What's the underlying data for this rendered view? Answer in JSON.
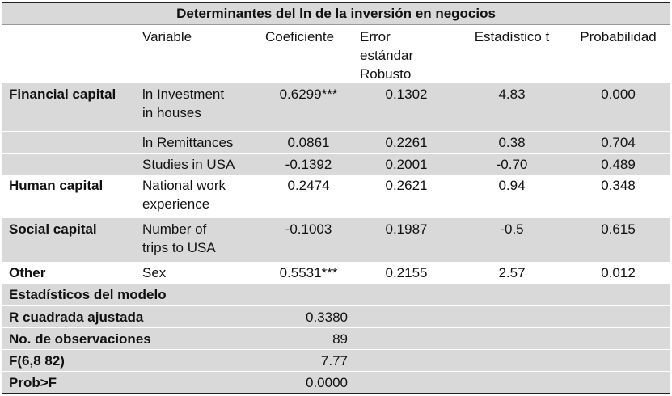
{
  "title": "Determinantes del ln de la inversión en negocios",
  "headers": {
    "group": "",
    "variable": "Variable",
    "coef": "Coeficiente",
    "error_l1": "Error",
    "error_l2": "estándar",
    "error_l3": "Robusto",
    "tstat": "Estadístico t",
    "prob": "Probabilidad"
  },
  "rows": [
    {
      "group": "Financial capital",
      "var_l1": "ln Investment",
      "var_l2": "in houses",
      "coef": "0.6299***",
      "err": "0.1302",
      "t": "4.83",
      "p": "0.000"
    },
    {
      "group": "",
      "var_l1": "ln Remittances",
      "var_l2": "",
      "coef": "0.0861",
      "err": "0.2261",
      "t": "0.38",
      "p": "0.704"
    },
    {
      "group": "",
      "var_l1": "Studies in USA",
      "var_l2": "",
      "coef": "-0.1392",
      "err": "0.2001",
      "t": "-0.70",
      "p": "0.489"
    },
    {
      "group": "Human capital",
      "var_l1": "National work",
      "var_l2": "experience",
      "coef": "0.2474",
      "err": "0.2621",
      "t": "0.94",
      "p": "0.348"
    },
    {
      "group": "Social capital",
      "var_l1": "Number of",
      "var_l2": "trips to USA",
      "coef": "-0.1003",
      "err": "0.1987",
      "t": "-0.5",
      "p": "0.615"
    },
    {
      "group": "Other",
      "var_l1": "Sex",
      "var_l2": "",
      "coef": "0.5531***",
      "err": "0.2155",
      "t": "2.57",
      "p": "0.012"
    }
  ],
  "model_stats": {
    "heading": "Estadísticos del modelo",
    "items": [
      {
        "label": "R cuadrada ajustada",
        "value": "0.3380"
      },
      {
        "label": "No. de observaciones",
        "value": "89"
      },
      {
        "label": "F(6,8 82)",
        "value": "7.77"
      },
      {
        "label": "Prob>F",
        "value": "0.0000"
      }
    ]
  }
}
